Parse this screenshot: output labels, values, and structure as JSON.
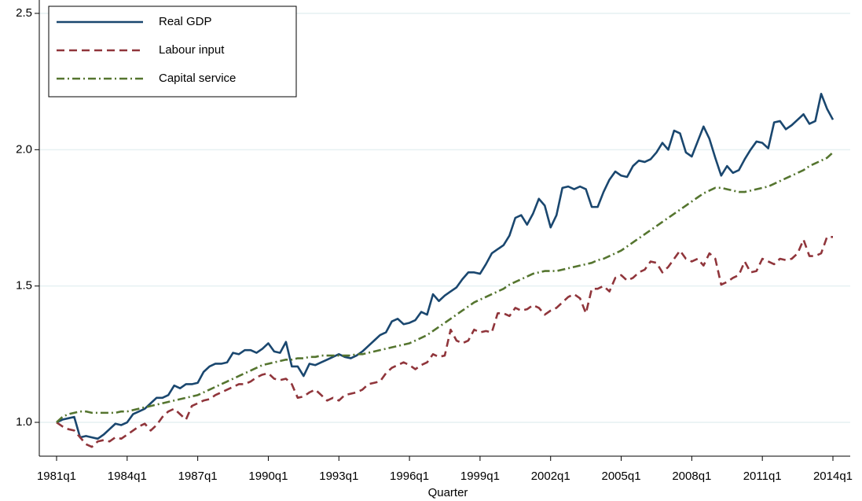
{
  "chart_data": {
    "type": "line",
    "x_label": "Quarter",
    "categories": [
      "1981q1",
      null,
      null,
      null,
      null,
      null,
      null,
      null,
      null,
      null,
      null,
      null,
      "1984q1",
      null,
      null,
      null,
      null,
      null,
      null,
      null,
      null,
      null,
      null,
      null,
      "1987q1",
      null,
      null,
      null,
      null,
      null,
      null,
      null,
      null,
      null,
      null,
      null,
      "1990q1",
      null,
      null,
      null,
      null,
      null,
      null,
      null,
      null,
      null,
      null,
      null,
      "1993q1",
      null,
      null,
      null,
      null,
      null,
      null,
      null,
      null,
      null,
      null,
      null,
      "1996q1",
      null,
      null,
      null,
      null,
      null,
      null,
      null,
      null,
      null,
      null,
      null,
      "1999q1",
      null,
      null,
      null,
      null,
      null,
      null,
      null,
      null,
      null,
      null,
      null,
      "2002q1",
      null,
      null,
      null,
      null,
      null,
      null,
      null,
      null,
      null,
      null,
      null,
      "2005q1",
      null,
      null,
      null,
      null,
      null,
      null,
      null,
      null,
      null,
      null,
      null,
      "2008q1",
      null,
      null,
      null,
      null,
      null,
      null,
      null,
      null,
      null,
      null,
      null,
      "2011q1",
      null,
      null,
      null,
      null,
      null,
      null,
      null,
      null,
      null,
      null,
      null,
      "2014q1"
    ],
    "series": [
      {
        "name": "Real GDP",
        "color": "#1a476f",
        "dash": "solid",
        "values": [
          1.0,
          1.01,
          1.015,
          1.02,
          0.945,
          0.95,
          0.945,
          0.94,
          0.955,
          0.975,
          0.995,
          0.99,
          1.0,
          1.03,
          1.04,
          1.05,
          1.07,
          1.09,
          1.09,
          1.1,
          1.135,
          1.125,
          1.14,
          1.14,
          1.145,
          1.185,
          1.205,
          1.215,
          1.215,
          1.22,
          1.255,
          1.25,
          1.265,
          1.265,
          1.255,
          1.27,
          1.29,
          1.26,
          1.255,
          1.295,
          1.205,
          1.205,
          1.17,
          1.215,
          1.21,
          1.22,
          1.23,
          1.24,
          1.25,
          1.24,
          1.235,
          1.245,
          1.26,
          1.28,
          1.3,
          1.32,
          1.33,
          1.37,
          1.38,
          1.36,
          1.365,
          1.375,
          1.405,
          1.395,
          1.47,
          1.445,
          1.465,
          1.48,
          1.495,
          1.525,
          1.55,
          1.55,
          1.545,
          1.58,
          1.62,
          1.635,
          1.65,
          1.685,
          1.75,
          1.76,
          1.725,
          1.765,
          1.82,
          1.795,
          1.715,
          1.76,
          1.86,
          1.865,
          1.855,
          1.865,
          1.855,
          1.79,
          1.79,
          1.845,
          1.89,
          1.92,
          1.905,
          1.9,
          1.94,
          1.96,
          1.955,
          1.965,
          1.99,
          2.025,
          2.0,
          2.07,
          2.06,
          1.99,
          1.975,
          2.03,
          2.085,
          2.04,
          1.97,
          1.905,
          1.94,
          1.915,
          1.925,
          1.965,
          2.0,
          2.03,
          2.025,
          2.005,
          2.1,
          2.105,
          2.075,
          2.09,
          2.11,
          2.13,
          2.095,
          2.105,
          2.205,
          2.15,
          2.11
        ]
      },
      {
        "name": "Labour input",
        "color": "#90353b",
        "dash": "dash",
        "values": [
          1.0,
          0.985,
          0.975,
          0.97,
          0.945,
          0.92,
          0.91,
          0.93,
          0.935,
          0.93,
          0.945,
          0.94,
          0.955,
          0.97,
          0.985,
          0.995,
          0.97,
          0.99,
          1.02,
          1.04,
          1.05,
          1.03,
          1.01,
          1.06,
          1.07,
          1.08,
          1.085,
          1.1,
          1.11,
          1.12,
          1.13,
          1.14,
          1.14,
          1.15,
          1.165,
          1.175,
          1.18,
          1.16,
          1.155,
          1.16,
          1.14,
          1.09,
          1.095,
          1.11,
          1.12,
          1.1,
          1.08,
          1.09,
          1.08,
          1.1,
          1.105,
          1.11,
          1.12,
          1.14,
          1.145,
          1.15,
          1.18,
          1.2,
          1.21,
          1.22,
          1.21,
          1.195,
          1.21,
          1.22,
          1.25,
          1.24,
          1.245,
          1.34,
          1.3,
          1.29,
          1.3,
          1.34,
          1.33,
          1.335,
          1.33,
          1.4,
          1.4,
          1.39,
          1.42,
          1.41,
          1.415,
          1.43,
          1.42,
          1.395,
          1.41,
          1.42,
          1.44,
          1.46,
          1.47,
          1.455,
          1.4,
          1.49,
          1.49,
          1.5,
          1.48,
          1.53,
          1.54,
          1.52,
          1.53,
          1.55,
          1.56,
          1.59,
          1.585,
          1.55,
          1.57,
          1.6,
          1.63,
          1.6,
          1.59,
          1.6,
          1.575,
          1.62,
          1.6,
          1.505,
          1.515,
          1.53,
          1.54,
          1.59,
          1.55,
          1.555,
          1.6,
          1.59,
          1.58,
          1.6,
          1.595,
          1.6,
          1.62,
          1.67,
          1.61,
          1.61,
          1.62,
          1.68,
          1.68
        ]
      },
      {
        "name": "Capital service",
        "color": "#55752f",
        "dash": "dashdot",
        "values": [
          1.0,
          1.02,
          1.03,
          1.035,
          1.04,
          1.04,
          1.035,
          1.035,
          1.035,
          1.035,
          1.035,
          1.04,
          1.04,
          1.045,
          1.05,
          1.055,
          1.06,
          1.065,
          1.07,
          1.075,
          1.08,
          1.085,
          1.09,
          1.095,
          1.1,
          1.11,
          1.12,
          1.13,
          1.14,
          1.15,
          1.16,
          1.17,
          1.18,
          1.19,
          1.2,
          1.21,
          1.215,
          1.22,
          1.225,
          1.23,
          1.23,
          1.235,
          1.235,
          1.24,
          1.24,
          1.245,
          1.245,
          1.245,
          1.245,
          1.245,
          1.245,
          1.25,
          1.25,
          1.255,
          1.26,
          1.265,
          1.27,
          1.275,
          1.28,
          1.285,
          1.29,
          1.3,
          1.31,
          1.32,
          1.335,
          1.35,
          1.365,
          1.38,
          1.395,
          1.41,
          1.425,
          1.44,
          1.45,
          1.46,
          1.47,
          1.48,
          1.49,
          1.505,
          1.515,
          1.525,
          1.535,
          1.545,
          1.55,
          1.555,
          1.555,
          1.555,
          1.56,
          1.565,
          1.57,
          1.575,
          1.58,
          1.585,
          1.595,
          1.6,
          1.61,
          1.62,
          1.63,
          1.645,
          1.66,
          1.675,
          1.69,
          1.705,
          1.72,
          1.735,
          1.75,
          1.765,
          1.78,
          1.795,
          1.81,
          1.825,
          1.84,
          1.85,
          1.86,
          1.86,
          1.855,
          1.85,
          1.845,
          1.845,
          1.85,
          1.855,
          1.86,
          1.865,
          1.875,
          1.885,
          1.895,
          1.905,
          1.915,
          1.925,
          1.94,
          1.95,
          1.96,
          1.97,
          1.99
        ]
      }
    ],
    "ylim": [
      0.876,
      2.549
    ],
    "yticks": [
      {
        "value": 1,
        "label": "1.0"
      },
      1.5,
      {
        "value": 2,
        "label": "2.0"
      },
      2.5
    ],
    "grid": true,
    "legend": "upper left"
  }
}
